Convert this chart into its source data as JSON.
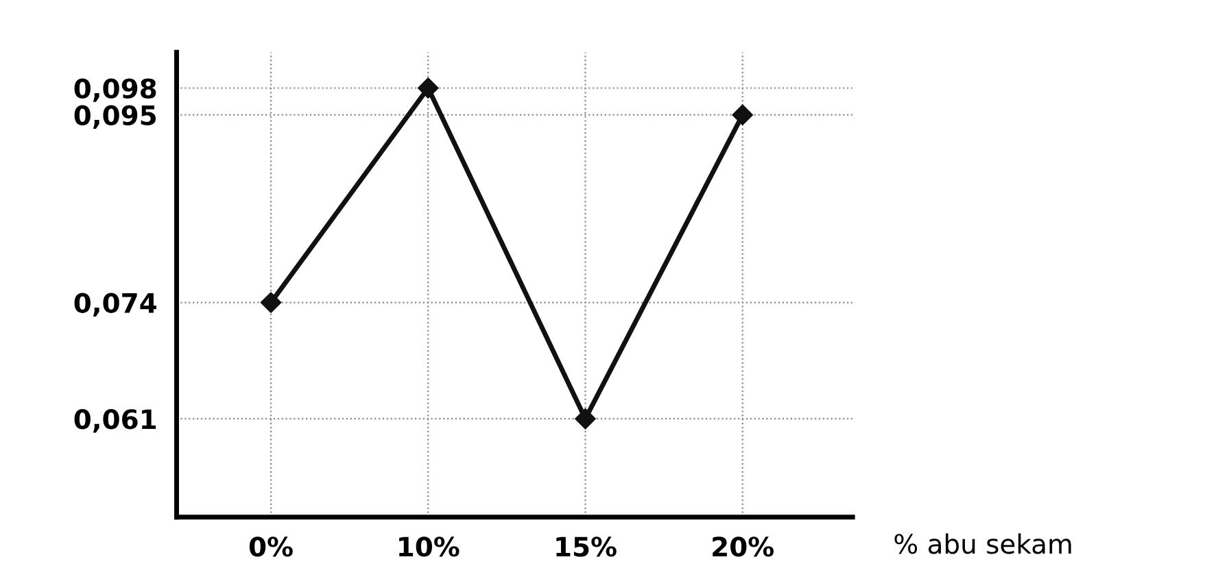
{
  "chart_data": {
    "type": "line",
    "categories": [
      "0%",
      "10%",
      "15%",
      "20%"
    ],
    "values": [
      0.074,
      0.098,
      0.061,
      0.095
    ],
    "color": "#111111",
    "marker": "diamond",
    "line_style": "solid",
    "xlabel": "% abu sekam",
    "ylim": [
      0.05,
      0.102
    ],
    "yticks": [
      {
        "value": 0.061,
        "label": "0,061"
      },
      {
        "value": 0.074,
        "label": "0,074"
      },
      {
        "value": 0.095,
        "label": "0,095"
      },
      {
        "value": 0.098,
        "label": "0,098"
      }
    ],
    "grid": true
  }
}
